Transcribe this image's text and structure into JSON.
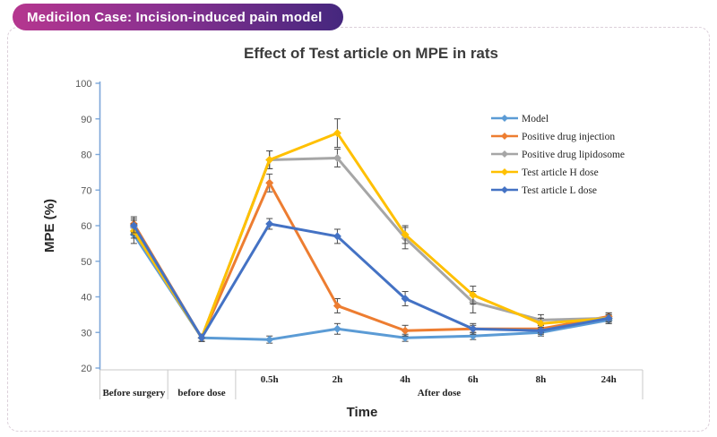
{
  "badge": {
    "text": "Medicilon Case: Incision-induced pain model",
    "gradient_from": "#b5368f",
    "gradient_to": "#45277e"
  },
  "chart_data": {
    "type": "line",
    "title": "Effect of Test article on MPE in rats",
    "xlabel": "Time",
    "ylabel": "MPE (%)",
    "ylim": [
      20,
      100
    ],
    "yticks": [
      20,
      30,
      40,
      50,
      60,
      70,
      80,
      90,
      100
    ],
    "grid": false,
    "legend_position": "inside-upper-right",
    "marker": "diamond",
    "error_bars": true,
    "categories": [
      "Before surgery",
      "before dose",
      "0.5h",
      "2h",
      "4h",
      "6h",
      "8h",
      "24h"
    ],
    "axis_groups": [
      {
        "label": "Before surgery",
        "span": 1,
        "show_category_labels": false
      },
      {
        "label": "before dose",
        "span": 1,
        "show_category_labels": false
      },
      {
        "label": "After dose",
        "span": 6,
        "show_category_labels": true
      }
    ],
    "series": [
      {
        "name": "Model",
        "color": "#5B9BD5",
        "values": [
          57.5,
          28.5,
          28,
          31,
          28.5,
          29,
          30,
          33.5
        ],
        "errors": [
          2.5,
          1,
          1,
          1.5,
          1,
          1,
          1,
          1
        ]
      },
      {
        "name": "Positive drug injection",
        "color": "#ED7D31",
        "values": [
          60.5,
          28.5,
          72,
          37.5,
          30.5,
          31,
          31,
          34.5
        ],
        "errors": [
          2,
          1,
          2.5,
          2,
          1.5,
          1,
          1,
          1
        ]
      },
      {
        "name": "Positive drug lipidosome",
        "color": "#A6A6A6",
        "values": [
          59.5,
          28.5,
          78.5,
          79,
          56.5,
          38.5,
          33.5,
          34
        ],
        "errors": [
          2,
          1,
          2.5,
          2.5,
          3,
          3,
          1.5,
          1
        ]
      },
      {
        "name": "Test article H dose",
        "color": "#FFC000",
        "values": [
          58.5,
          28.5,
          78.5,
          86,
          57.5,
          40.5,
          32.5,
          34
        ],
        "errors": [
          2,
          1,
          2.5,
          4,
          2.5,
          2.5,
          1.5,
          1
        ]
      },
      {
        "name": "Test article L dose",
        "color": "#4472C4",
        "values": [
          60,
          28.5,
          60.5,
          57,
          39.5,
          31,
          30.5,
          34
        ],
        "errors": [
          2,
          1,
          1.5,
          2,
          2,
          1.5,
          1,
          1.5
        ]
      }
    ],
    "axis_color": "#7da7d9",
    "table_line_color": "#c9c9c9",
    "error_bar_color": "#4a4a4a"
  }
}
